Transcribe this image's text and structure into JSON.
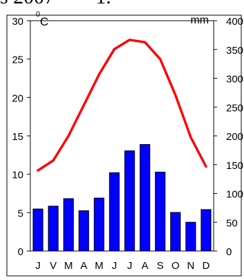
{
  "caption": {
    "text": "s 2007",
    "trailing": "1."
  },
  "units": {
    "temp_degree": "0",
    "temp_unit": "C",
    "precip_unit": "mm"
  },
  "chart_data": {
    "type": "bar",
    "categories": [
      "J",
      "V",
      "M",
      "A",
      "M",
      "J",
      "J",
      "A",
      "S",
      "O",
      "N",
      "D"
    ],
    "series": [
      {
        "type": "bar",
        "axis": "right",
        "color": "#0000ff",
        "values": [
          73,
          78,
          91,
          70,
          92,
          136,
          174,
          185,
          137,
          67,
          50,
          72
        ]
      },
      {
        "type": "line",
        "axis": "left",
        "color": "#ff0000",
        "values": [
          10.5,
          11.8,
          15.0,
          19.0,
          23.0,
          26.3,
          27.5,
          27.2,
          25.0,
          20.3,
          14.8,
          11.0
        ]
      }
    ],
    "ylim_left": [
      0,
      30
    ],
    "yticks_left": [
      "0",
      "5",
      "10",
      "15",
      "20",
      "25",
      "30"
    ],
    "ylim_right": [
      0,
      400
    ],
    "yticks_right": [
      "0",
      "50",
      "100",
      "150",
      "200",
      "250",
      "300",
      "350",
      "400"
    ],
    "grid": false,
    "legend": "none"
  }
}
